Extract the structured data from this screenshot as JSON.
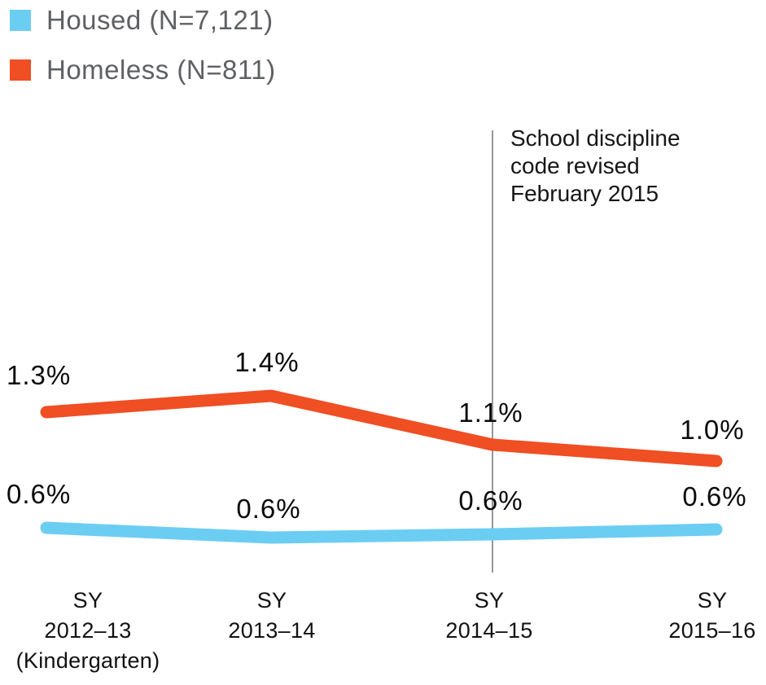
{
  "legend": {
    "items": [
      {
        "id": "housed",
        "label": "Housed (N=7,121)",
        "swatch_color": "#6CCDF3"
      },
      {
        "id": "homeless",
        "label": "Homeless (N=811)",
        "swatch_color": "#F04E23"
      }
    ]
  },
  "chart_data": {
    "type": "line",
    "title": "",
    "xlabel": "",
    "ylabel": "",
    "unit": "%",
    "ylim": [
      0,
      1.6
    ],
    "grid": false,
    "legend_position": "top-left",
    "categories": [
      "SY 2012–13 (Kindergarten)",
      "SY 2013–14",
      "SY 2014–15",
      "SY 2015–16"
    ],
    "x_tick_lines": [
      [
        "SY",
        "2012–13",
        "(Kindergarten)"
      ],
      [
        "SY",
        "2013–14"
      ],
      [
        "SY",
        "2014–15"
      ],
      [
        "SY",
        "2015–16"
      ]
    ],
    "series": [
      {
        "name": "Homeless (N=811)",
        "color": "#F04E23",
        "values": [
          1.3,
          1.4,
          1.1,
          1.0
        ],
        "point_labels": [
          "1.3%",
          "1.4%",
          "1.1%",
          "1.0%"
        ]
      },
      {
        "name": "Housed (N=7,121)",
        "color": "#6CCDF3",
        "values": [
          0.6,
          0.6,
          0.6,
          0.6
        ],
        "plot_values": [
          0.59,
          0.53,
          0.55,
          0.58
        ],
        "point_labels": [
          "0.6%",
          "0.6%",
          "0.6%",
          "0.6%"
        ]
      }
    ],
    "annotation": {
      "text": "School discipline code revised February 2015",
      "lines": [
        "School discipline",
        "code revised",
        "February 2015"
      ],
      "at_category": "SY 2014–15",
      "rule_color": "#97989A"
    },
    "colors": {
      "housed_line": "#6CCDF3",
      "homeless_line": "#F04E23",
      "label_text": "#0B0B0B",
      "legend_text": "#5E6063",
      "annotation_rule": "#97989A"
    }
  }
}
